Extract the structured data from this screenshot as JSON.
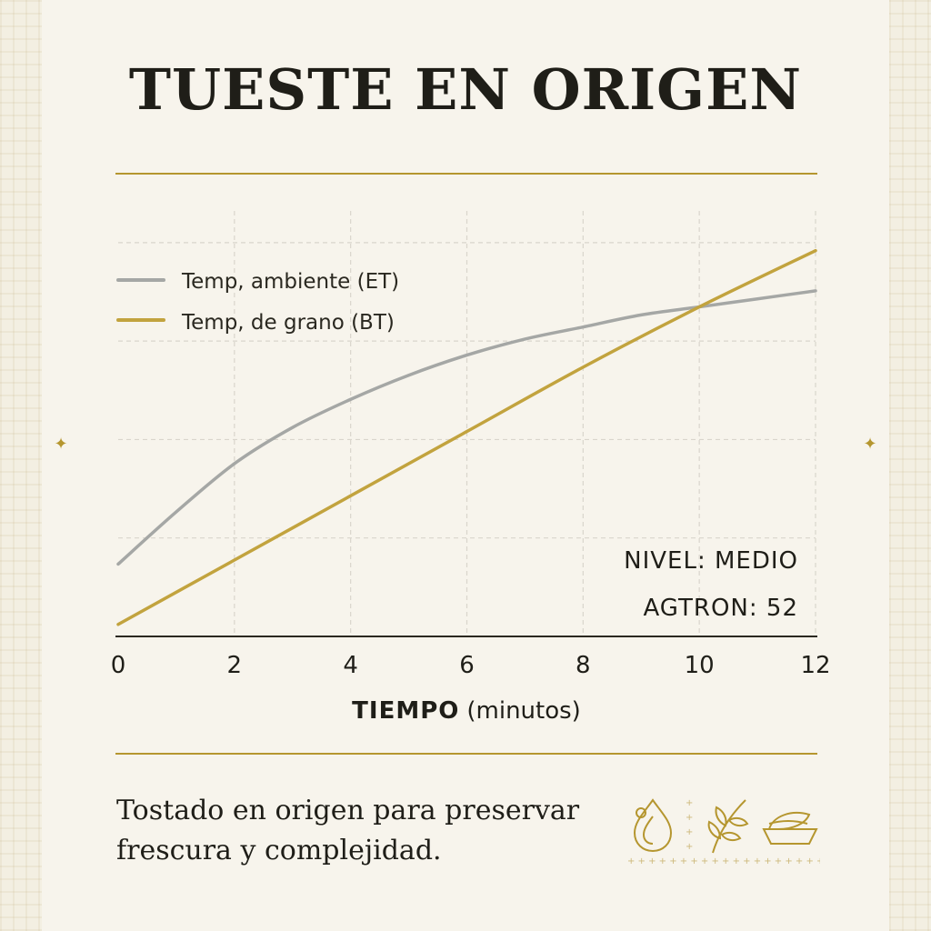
{
  "title": "TUESTE EN ORIGEN",
  "tagline_line1": "Tostado en origen para preservar",
  "tagline_line2": "frescura y complejidad.",
  "colors": {
    "accent_gold": "#b5962f",
    "et_gray": "#a5a7a5",
    "bt_gold": "#c2a33e",
    "text_dark": "#1f1e18",
    "background": "#f7f4ec"
  },
  "icons": [
    "drop-icon",
    "leaf-branch-icon",
    "bowl-icon",
    "sparkle-icon"
  ],
  "chart_data": {
    "type": "line",
    "xlabel_bold": "TIEMPO",
    "xlabel_rest": "(minutos)",
    "x_ticks": [
      0,
      2,
      4,
      6,
      8,
      10,
      12
    ],
    "xlim": [
      0,
      12
    ],
    "ylim": [
      0,
      1
    ],
    "grid": true,
    "legend_position": "top-left",
    "series": [
      {
        "name": "Temp, ambiente (ET)",
        "color": "#a5a7a5",
        "x": [
          0,
          1,
          2,
          3,
          4,
          5,
          6,
          7,
          8,
          9,
          10,
          11,
          12
        ],
        "y": [
          0.18,
          0.31,
          0.43,
          0.52,
          0.59,
          0.65,
          0.7,
          0.74,
          0.77,
          0.8,
          0.82,
          0.84,
          0.86
        ]
      },
      {
        "name": "Temp, de grano (BT)",
        "color": "#c2a33e",
        "x": [
          0,
          2,
          4,
          6,
          8,
          10,
          12
        ],
        "y": [
          0.03,
          0.19,
          0.35,
          0.51,
          0.67,
          0.82,
          0.96
        ]
      }
    ],
    "annotations": [
      "NIVEL: MEDIO",
      "AGTRON: 52"
    ]
  }
}
